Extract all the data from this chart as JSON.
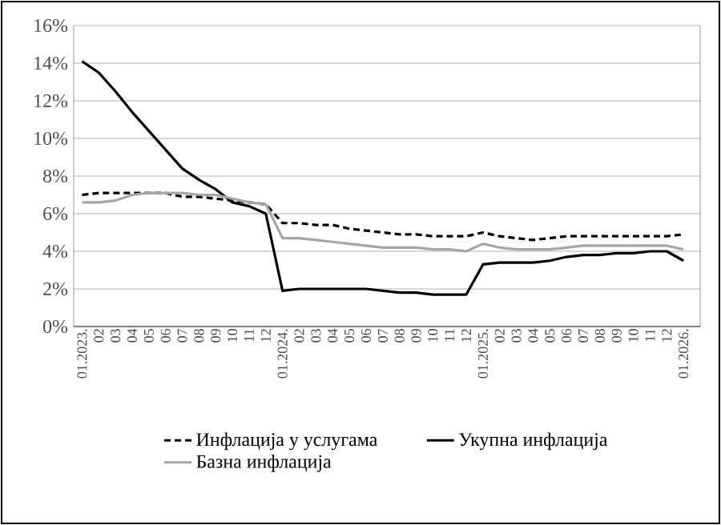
{
  "chart_data": {
    "type": "line",
    "categories": [
      "01.2023.",
      "02",
      "03",
      "04",
      "05",
      "06",
      "07",
      "08",
      "09",
      "10",
      "11",
      "12",
      "01.2024.",
      "02",
      "03",
      "04",
      "05",
      "06",
      "07",
      "08",
      "09",
      "10",
      "11",
      "12",
      "01.2025.",
      "02",
      "03",
      "04",
      "05",
      "06",
      "07",
      "08",
      "09",
      "10",
      "11",
      "12",
      "01.2026."
    ],
    "series": [
      {
        "name": "Инфлација у услугама",
        "color": "#000000",
        "line_style": "dashed",
        "values": [
          7.0,
          7.1,
          7.1,
          7.1,
          7.1,
          7.1,
          6.9,
          6.9,
          6.8,
          6.7,
          6.6,
          6.5,
          5.5,
          5.5,
          5.4,
          5.4,
          5.2,
          5.1,
          5.0,
          4.9,
          4.9,
          4.8,
          4.8,
          4.8,
          5.0,
          4.8,
          4.7,
          4.6,
          4.7,
          4.8,
          4.8,
          4.8,
          4.8,
          4.8,
          4.8,
          4.8,
          4.9
        ]
      },
      {
        "name": "Укупна инфлација",
        "color": "#000000",
        "line_style": "solid",
        "values": [
          14.1,
          13.5,
          12.5,
          11.4,
          10.4,
          9.4,
          8.4,
          7.8,
          7.3,
          6.6,
          6.4,
          6.0,
          1.9,
          2.0,
          2.0,
          2.0,
          2.0,
          2.0,
          1.9,
          1.8,
          1.8,
          1.7,
          1.7,
          1.7,
          3.3,
          3.4,
          3.4,
          3.4,
          3.5,
          3.7,
          3.8,
          3.8,
          3.9,
          3.9,
          4.0,
          4.0,
          3.5
        ]
      },
      {
        "name": "Базна инфлација",
        "color": "#a6a6a6",
        "line_style": "solid",
        "values": [
          6.6,
          6.6,
          6.7,
          7.0,
          7.1,
          7.1,
          7.1,
          7.0,
          7.0,
          6.8,
          6.6,
          6.5,
          4.7,
          4.7,
          4.6,
          4.5,
          4.4,
          4.3,
          4.2,
          4.2,
          4.2,
          4.1,
          4.1,
          4.0,
          4.4,
          4.2,
          4.1,
          4.1,
          4.1,
          4.2,
          4.3,
          4.3,
          4.3,
          4.3,
          4.3,
          4.3,
          4.1
        ]
      }
    ],
    "ylim": [
      0,
      16
    ],
    "yticks": [
      {
        "value": 0,
        "label": "0%"
      },
      {
        "value": 2,
        "label": "2%"
      },
      {
        "value": 4,
        "label": "4%"
      },
      {
        "value": 6,
        "label": "6%"
      },
      {
        "value": 8,
        "label": "8%"
      },
      {
        "value": 10,
        "label": "10%"
      },
      {
        "value": 12,
        "label": "12%"
      },
      {
        "value": 14,
        "label": "14%"
      },
      {
        "value": 16,
        "label": "16%"
      }
    ],
    "grid": "y",
    "legend": "bottom"
  }
}
